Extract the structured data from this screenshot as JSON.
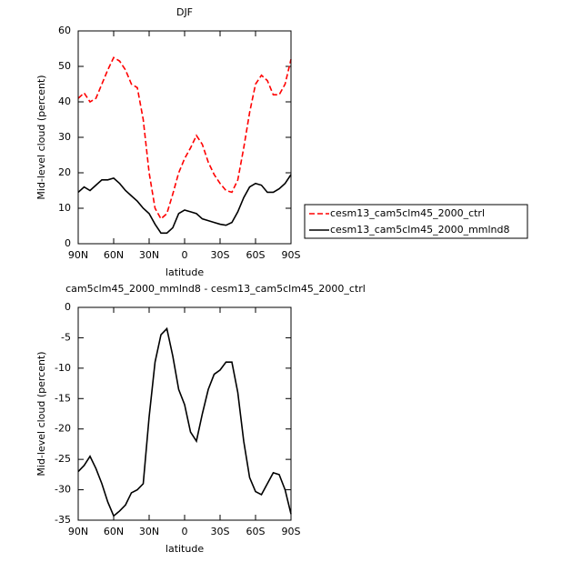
{
  "chart_data": [
    {
      "type": "line",
      "title": "DJF",
      "xlabel": "latitude",
      "ylabel": "Mid-level cloud (percent)",
      "x": [
        90,
        85,
        80,
        75,
        70,
        65,
        60,
        55,
        50,
        45,
        40,
        35,
        30,
        25,
        20,
        15,
        10,
        5,
        0,
        -5,
        -10,
        -15,
        -20,
        -25,
        -30,
        -35,
        -40,
        -45,
        -50,
        -55,
        -60,
        -65,
        -70,
        -75,
        -80,
        -85,
        -90
      ],
      "series": [
        {
          "name": "cesm13_cam5clm45_2000_ctrl",
          "color": "#ff0000",
          "line_style": "dashed",
          "values": [
            41,
            42.5,
            40,
            41,
            45,
            49,
            52.5,
            51.5,
            49,
            45,
            44,
            35,
            20,
            10,
            7,
            8.5,
            14,
            20,
            24,
            27,
            30.5,
            28,
            23,
            19.5,
            17,
            15,
            14.5,
            18,
            27,
            37,
            45,
            47.5,
            46,
            42,
            42,
            45,
            52
          ]
        },
        {
          "name": "cesm13_cam5clm45_2000_mmlnd8",
          "color": "#000000",
          "line_style": "solid",
          "values": [
            14.5,
            16,
            15,
            16.5,
            18,
            18,
            18.5,
            17,
            15,
            13.5,
            12,
            10,
            8.5,
            5.5,
            3,
            3,
            4.5,
            8.5,
            9.5,
            9,
            8.5,
            7,
            6.5,
            6,
            5.5,
            5.2,
            6,
            9,
            13,
            16,
            17,
            16.5,
            14.5,
            14.5,
            15.5,
            17,
            19.5
          ]
        }
      ],
      "xlim": [
        90,
        -90
      ],
      "xticks": [
        {
          "value": 90,
          "label": "90N"
        },
        {
          "value": 60,
          "label": "60N"
        },
        {
          "value": 30,
          "label": "30N"
        },
        0,
        {
          "value": -30,
          "label": "30S"
        },
        {
          "value": -60,
          "label": "60S"
        },
        {
          "value": -90,
          "label": "90S"
        }
      ],
      "ylim": [
        0,
        60
      ],
      "yticks": [
        0,
        10,
        20,
        30,
        40,
        50,
        60
      ],
      "legend": "right"
    },
    {
      "type": "line",
      "title": "cam5clm45_2000_mmlnd8 - cesm13_cam5clm45_2000_ctrl",
      "xlabel": "latitude",
      "ylabel": "Mid-level cloud (percent)",
      "x": [
        90,
        85,
        80,
        75,
        70,
        65,
        60,
        55,
        50,
        45,
        40,
        35,
        30,
        25,
        20,
        15,
        10,
        5,
        0,
        -5,
        -10,
        -15,
        -20,
        -25,
        -30,
        -35,
        -40,
        -45,
        -50,
        -55,
        -60,
        -65,
        -70,
        -75,
        -80,
        -85,
        -90
      ],
      "series": [
        {
          "color": "#000000",
          "line_style": "solid",
          "values": [
            -27,
            -26,
            -24.5,
            -26.5,
            -29,
            -32,
            -34.3,
            -33.5,
            -32.5,
            -30.5,
            -30,
            -29,
            -18,
            -9,
            -4.5,
            -3.5,
            -8,
            -13.5,
            -16,
            -20.5,
            -22,
            -17.5,
            -13.5,
            -11,
            -10.3,
            -9,
            -9,
            -14,
            -22,
            -28,
            -30.3,
            -30.8,
            -29,
            -27.2,
            -27.5,
            -30,
            -34
          ]
        }
      ],
      "xlim": [
        90,
        -90
      ],
      "xticks": [
        {
          "value": 90,
          "label": "90N"
        },
        {
          "value": 60,
          "label": "60N"
        },
        {
          "value": 30,
          "label": "30N"
        },
        0,
        {
          "value": -30,
          "label": "30S"
        },
        {
          "value": -60,
          "label": "60S"
        },
        {
          "value": -90,
          "label": "90S"
        }
      ],
      "ylim": [
        -35,
        0
      ],
      "yticks": [
        0,
        -5,
        -10,
        -15,
        -20,
        -25,
        -30,
        -35
      ]
    }
  ]
}
